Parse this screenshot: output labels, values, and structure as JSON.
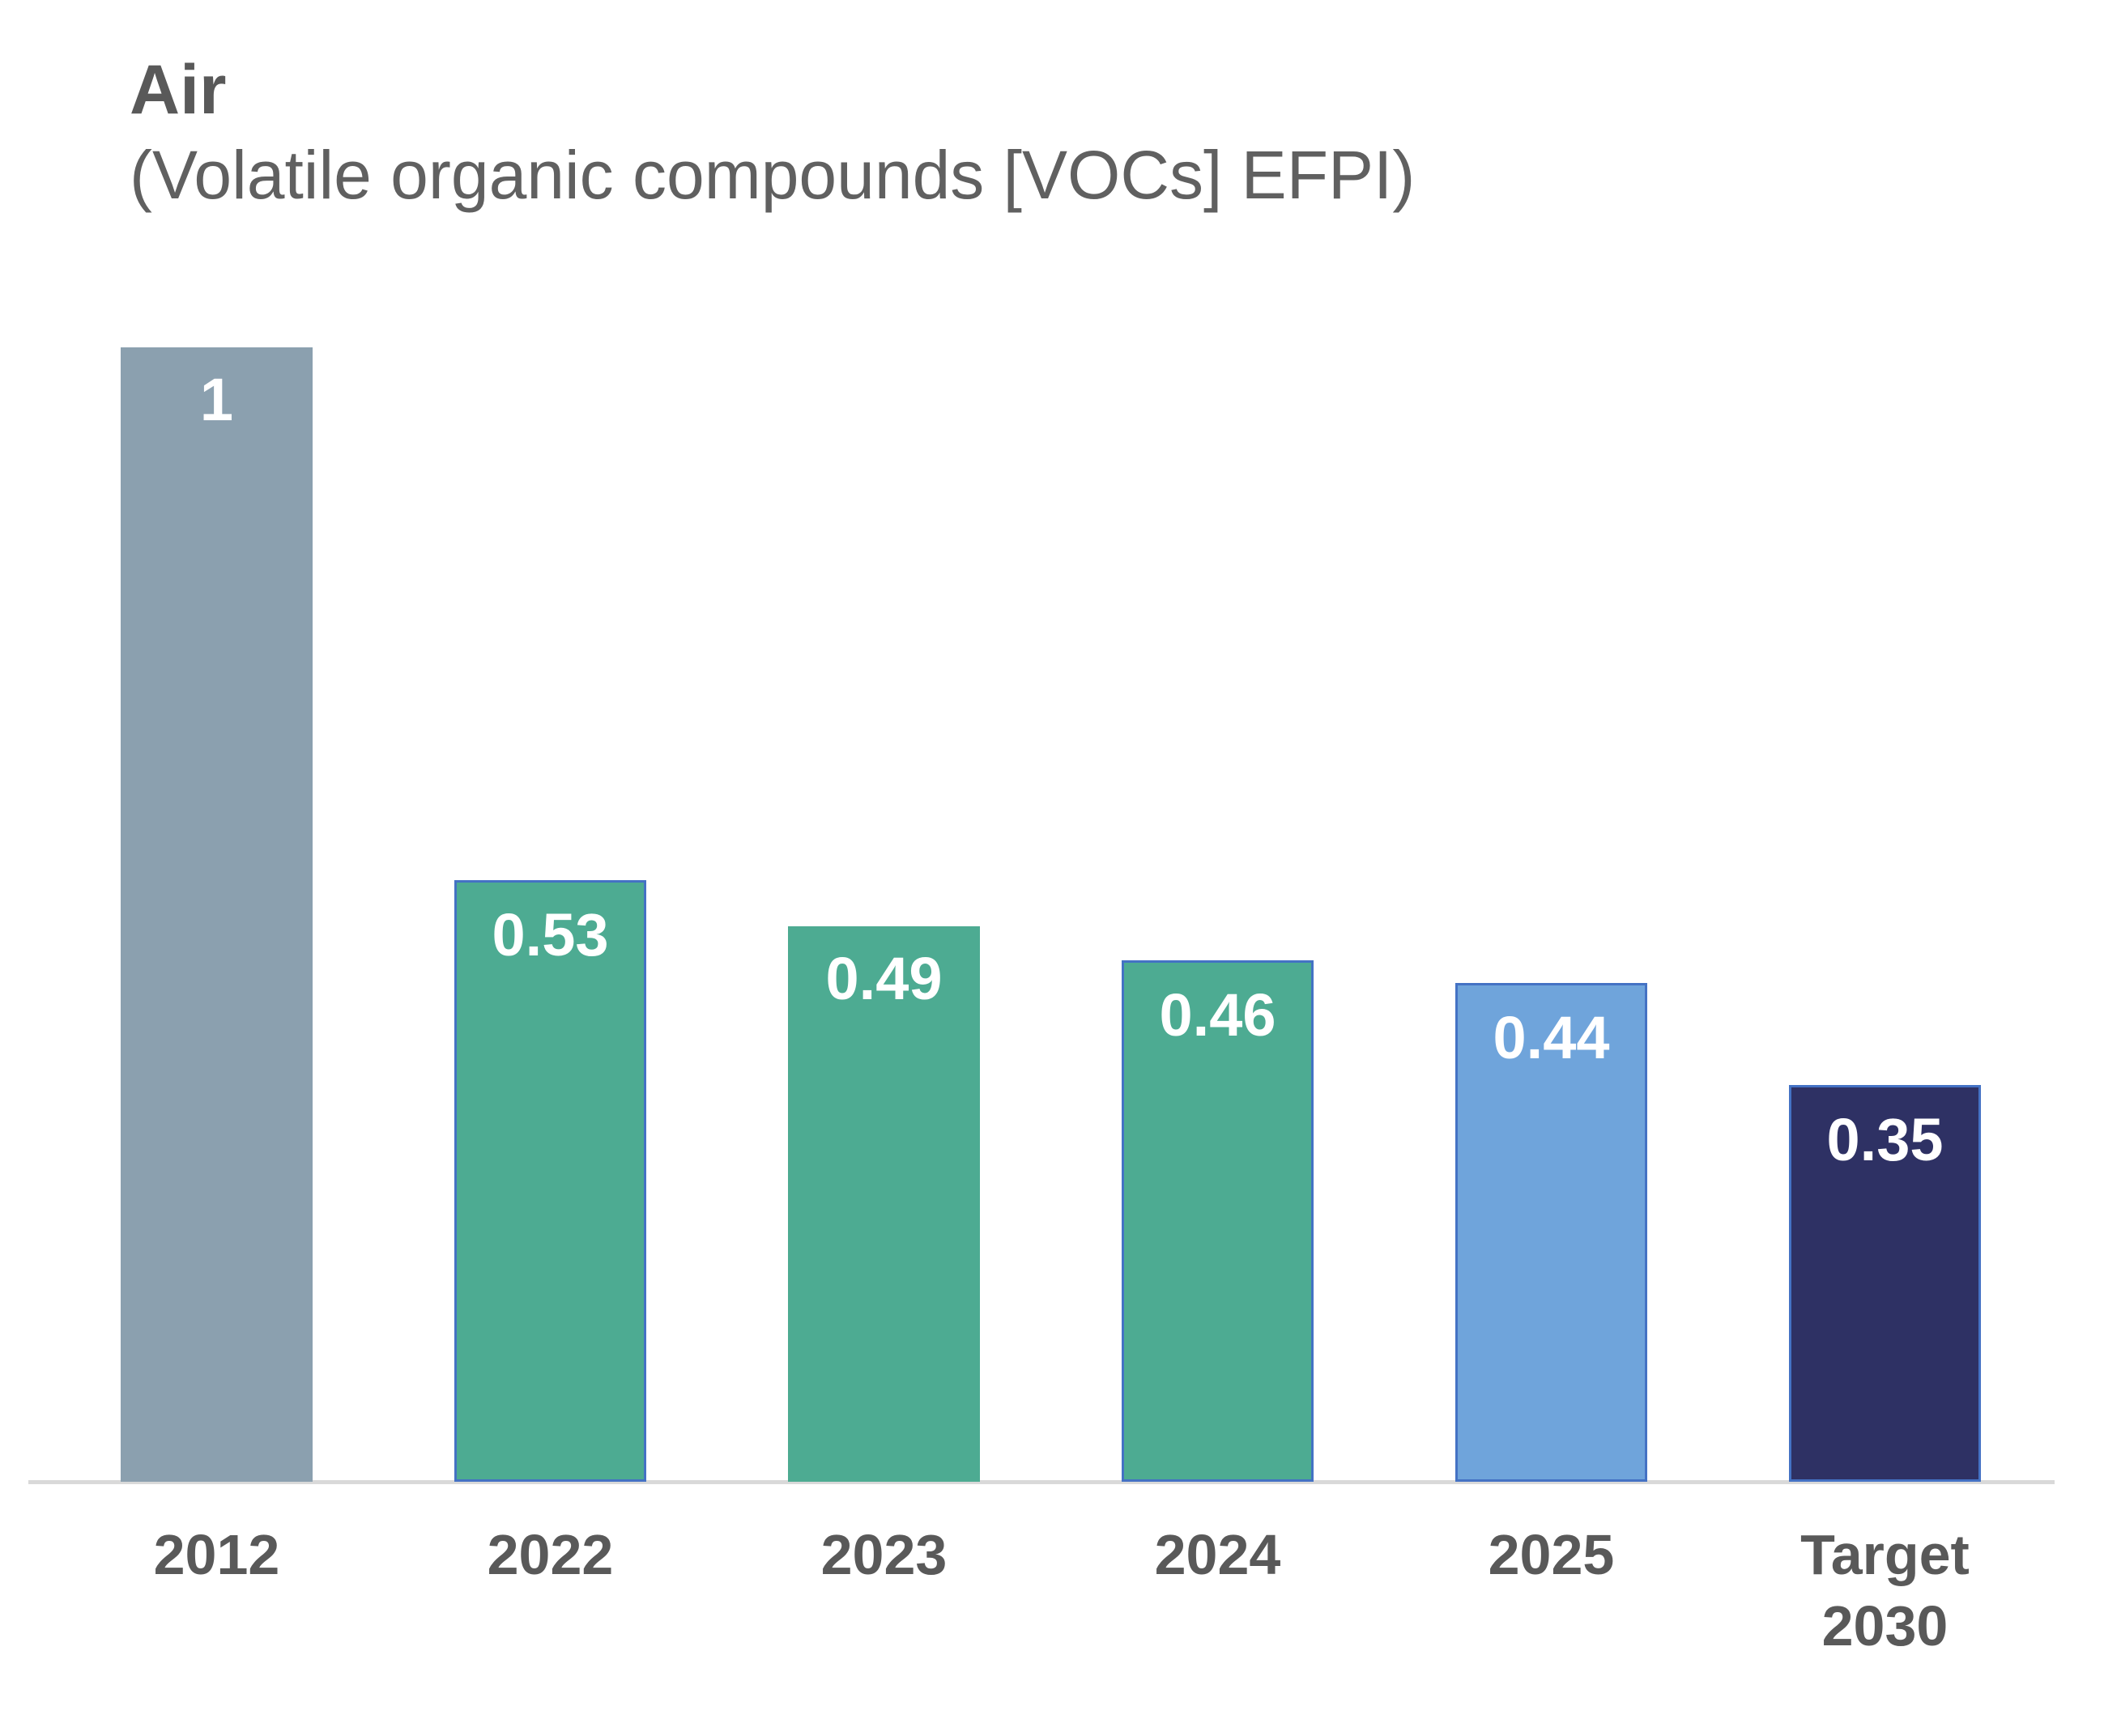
{
  "chart": {
    "title": "Air",
    "subtitle": "(Volatile organic compounds [VOCs] EFPI)",
    "colors": {
      "title_text": "#595959",
      "axis_text": "#595959",
      "axis_line": "#D9D9D9",
      "value_label_text": "#FFFFFF",
      "bar_border_accent": "#4472C4"
    }
  },
  "chart_data": {
    "type": "bar",
    "title": "Air",
    "subtitle": "(Volatile organic compounds [VOCs] EFPI)",
    "categories": [
      "2012",
      "2022",
      "2023",
      "2024",
      "2025",
      "Target 2030"
    ],
    "values": [
      1,
      0.53,
      0.49,
      0.46,
      0.44,
      0.35
    ],
    "data_labels": [
      "1",
      "0.53",
      "0.49",
      "0.46",
      "0.44",
      "0.35"
    ],
    "x_tick_labels": [
      "2012",
      "2022",
      "2023",
      "2024",
      "2025",
      "Target\n2030"
    ],
    "bar_colors": [
      "#8BA0AF",
      "#4DAB92",
      "#4DAB92",
      "#4DAB92",
      "#6FA4DB",
      "#2E3164"
    ],
    "bar_border_colors": [
      null,
      "#4472C4",
      null,
      "#4472C4",
      "#4472C4",
      "#4472C4"
    ],
    "xlabel": "",
    "ylabel": "",
    "ylim": [
      0,
      1.12
    ],
    "grid": false,
    "legend": false,
    "data_labels_position": "inside-top",
    "baseline_value": 0
  }
}
